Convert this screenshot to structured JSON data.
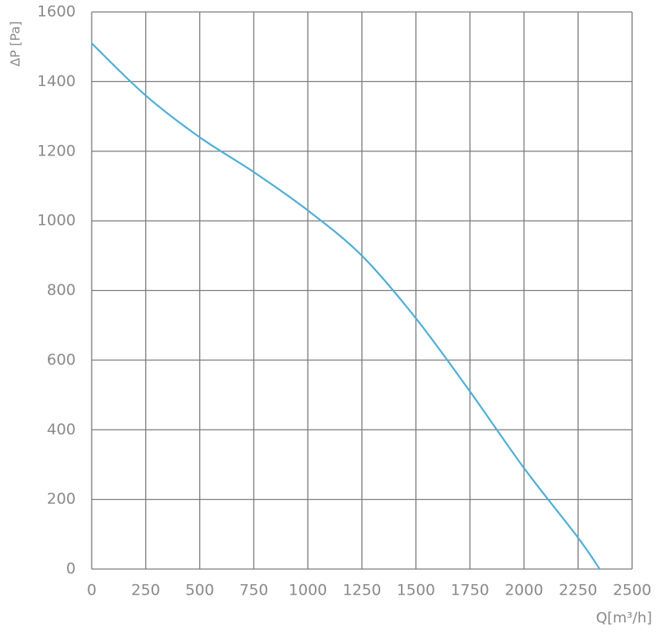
{
  "chart_data": {
    "type": "line",
    "x_label": "Q[m³/h]",
    "y_label": "ΔP [Pa]",
    "x": [
      0,
      250,
      500,
      750,
      1000,
      1250,
      1500,
      1750,
      2000,
      2250,
      2350
    ],
    "series": [
      {
        "color": "#4eaed6",
        "values": [
          1510,
          1360,
          1240,
          1140,
          1030,
          900,
          720,
          510,
          290,
          90,
          0
        ]
      }
    ],
    "xlim": [
      0,
      2500
    ],
    "xticks": [
      0,
      250,
      500,
      750,
      1000,
      1250,
      1500,
      1750,
      2000,
      2250,
      2500
    ],
    "ylim": [
      0,
      1600
    ],
    "yticks": [
      0,
      200,
      400,
      600,
      800,
      1000,
      1200,
      1400,
      1600
    ],
    "grid": true
  }
}
